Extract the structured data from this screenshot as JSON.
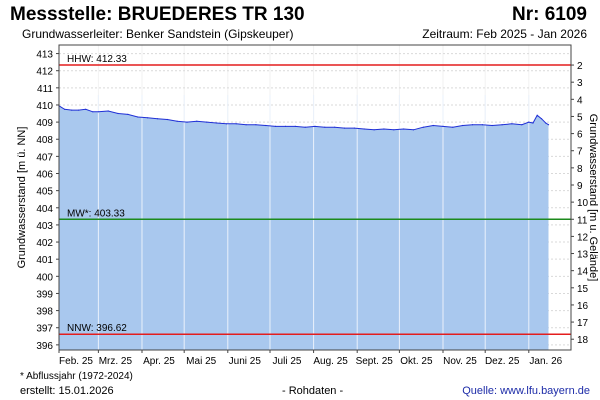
{
  "header": {
    "title": "Messstelle: BRUEDERES TR 130",
    "number": "Nr: 6109",
    "aquifer": "Grundwasserleiter:   Benker Sandstein (Gipskeuper)",
    "period": "Zeitraum: Feb 2025 - Jan 2026"
  },
  "footer": {
    "footnote": "* Abflussjahr (1972-2024)",
    "created": "erstellt:  15.01.2026",
    "raw": "- Rohdaten -",
    "source": "Quelle:  www.lfu.bayern.de"
  },
  "colors": {
    "area_fill": "#a9c8ee",
    "series_line": "#1f2fd6",
    "hhw_line": "#e41d1d",
    "nnw_line": "#e41d1d",
    "mw_line": "#1c8a1c",
    "grid": "#d9d9d9",
    "month_grid": "#f2f2f2"
  },
  "chart_data": {
    "type": "area",
    "ylabel": "Grundwasserstand [m ü. NN]",
    "ylabel_right": "Grundwasserstand [m u. Gelände]",
    "ylim": [
      395.7,
      413.5
    ],
    "y_ticks": [
      396,
      397,
      398,
      399,
      400,
      401,
      402,
      403,
      404,
      405,
      406,
      407,
      408,
      409,
      410,
      411,
      412,
      413
    ],
    "y_right_ticks": [
      2,
      3,
      4,
      5,
      6,
      7,
      8,
      9,
      10,
      11,
      12,
      13,
      14,
      15,
      16,
      17,
      18
    ],
    "ground_level": 414.33,
    "x_range": [
      "2025-02-01",
      "2026-01-31"
    ],
    "month_ticks": [
      {
        "date": "2025-02-01",
        "label": "Feb. 25"
      },
      {
        "date": "2025-03-01",
        "label": "Mrz. 25"
      },
      {
        "date": "2025-04-01",
        "label": "Apr. 25"
      },
      {
        "date": "2025-05-01",
        "label": "Mai 25"
      },
      {
        "date": "2025-06-01",
        "label": "Juni 25"
      },
      {
        "date": "2025-07-01",
        "label": "Juli 25"
      },
      {
        "date": "2025-08-01",
        "label": "Aug. 25"
      },
      {
        "date": "2025-09-01",
        "label": "Sept. 25"
      },
      {
        "date": "2025-10-01",
        "label": "Okt. 25"
      },
      {
        "date": "2025-11-01",
        "label": "Nov. 25"
      },
      {
        "date": "2025-12-01",
        "label": "Dez. 25"
      },
      {
        "date": "2026-01-01",
        "label": "Jan. 26"
      }
    ],
    "reference_lines": [
      {
        "key": "hhw",
        "label": "HHW: 412.33",
        "value": 412.33
      },
      {
        "key": "mw",
        "label": "MW*: 403.33",
        "value": 403.33
      },
      {
        "key": "nnw",
        "label": "NNW: 396.62",
        "value": 396.62
      }
    ],
    "series": [
      {
        "x": [
          "2025-02-01",
          "2025-02-05",
          "2025-02-10",
          "2025-02-15",
          "2025-02-20",
          "2025-02-25",
          "2025-03-01",
          "2025-03-08",
          "2025-03-15",
          "2025-03-22",
          "2025-03-29",
          "2025-04-05",
          "2025-04-12",
          "2025-04-19",
          "2025-04-26",
          "2025-05-03",
          "2025-05-10",
          "2025-05-17",
          "2025-05-24",
          "2025-05-31",
          "2025-06-07",
          "2025-06-14",
          "2025-06-21",
          "2025-06-28",
          "2025-07-05",
          "2025-07-12",
          "2025-07-19",
          "2025-07-26",
          "2025-08-02",
          "2025-08-09",
          "2025-08-16",
          "2025-08-23",
          "2025-08-30",
          "2025-09-06",
          "2025-09-13",
          "2025-09-20",
          "2025-09-27",
          "2025-10-04",
          "2025-10-11",
          "2025-10-18",
          "2025-10-25",
          "2025-11-01",
          "2025-11-08",
          "2025-11-15",
          "2025-11-22",
          "2025-11-29",
          "2025-12-06",
          "2025-12-13",
          "2025-12-20",
          "2025-12-27",
          "2026-01-01",
          "2026-01-04",
          "2026-01-07",
          "2026-01-10",
          "2026-01-13",
          "2026-01-15"
        ],
        "values": [
          409.95,
          409.75,
          409.7,
          409.7,
          409.75,
          409.6,
          409.6,
          409.65,
          409.5,
          409.45,
          409.3,
          409.25,
          409.2,
          409.15,
          409.05,
          409.0,
          409.05,
          409.0,
          408.95,
          408.9,
          408.9,
          408.85,
          408.85,
          408.8,
          408.75,
          408.75,
          408.75,
          408.7,
          408.75,
          408.7,
          408.7,
          408.65,
          408.65,
          408.6,
          408.55,
          408.6,
          408.55,
          408.6,
          408.55,
          408.7,
          408.8,
          408.75,
          408.7,
          408.8,
          408.85,
          408.85,
          408.8,
          408.85,
          408.9,
          408.85,
          409.0,
          408.95,
          409.4,
          409.2,
          408.95,
          408.85
        ]
      }
    ]
  }
}
